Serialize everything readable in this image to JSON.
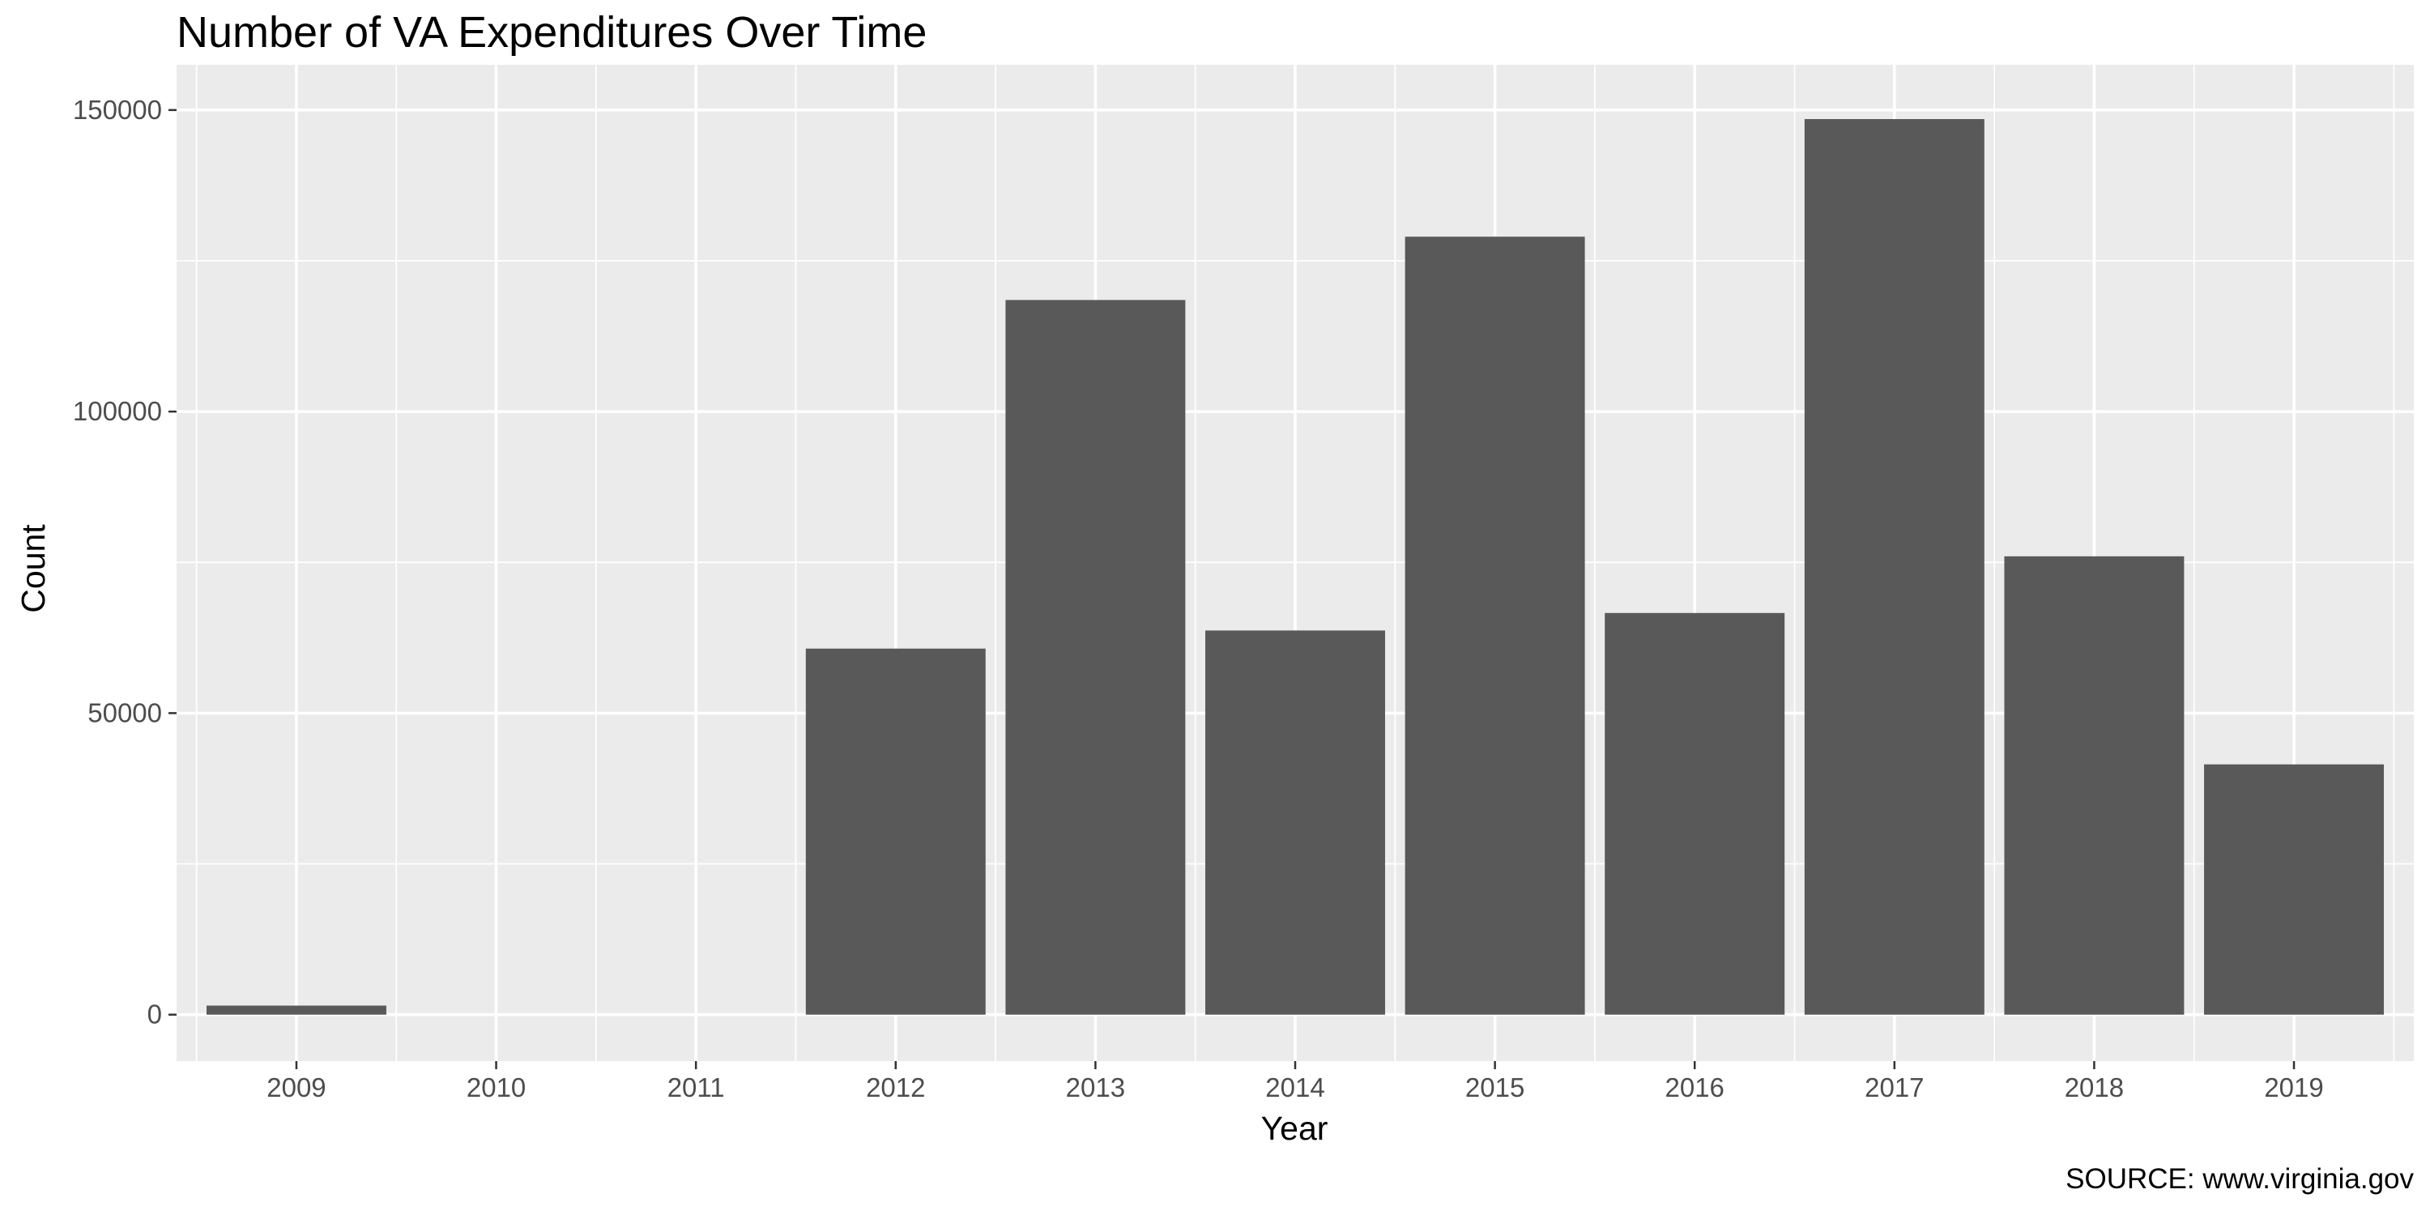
{
  "chart_data": {
    "type": "bar",
    "title": "Number of VA Expenditures Over Time",
    "xlabel": "Year",
    "ylabel": "Count",
    "caption": "SOURCE: www.virginia.gov",
    "categories": [
      "2009",
      "2010",
      "2011",
      "2012",
      "2013",
      "2014",
      "2015",
      "2016",
      "2017",
      "2018",
      "2019"
    ],
    "values": [
      1500,
      0,
      0,
      60700,
      118500,
      63700,
      129000,
      66600,
      148500,
      76000,
      41500
    ],
    "ylim": [
      -7700,
      157500
    ],
    "y_ticks": [
      0,
      50000,
      100000,
      150000
    ],
    "y_tick_labels": [
      "0",
      "50000",
      "100000",
      "150000"
    ],
    "grid": true,
    "legend": "none",
    "colors": {
      "bar": "#595959",
      "panel": "#ebebeb",
      "grid": "#ffffff"
    }
  }
}
